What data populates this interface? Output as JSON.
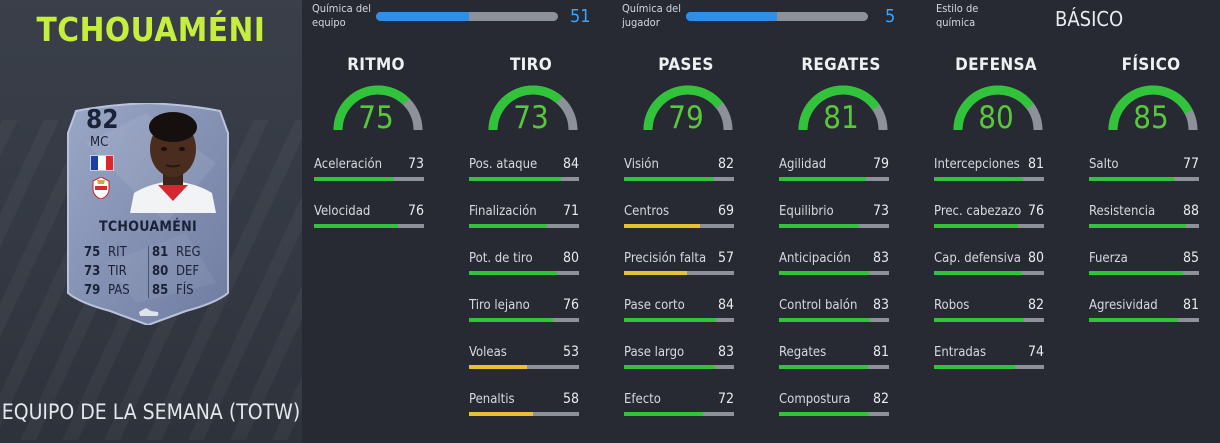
{
  "player": {
    "name_title": "TCHOUAMÉNI",
    "team_label": "EQUIPO DE LA SEMANA (TOTW)"
  },
  "card": {
    "rating": "82",
    "position": "MC",
    "name": "TCHOUAMÉNI",
    "stats": [
      {
        "l_val": "75",
        "l_lbl": "RIT",
        "r_val": "81",
        "r_lbl": "REG"
      },
      {
        "l_val": "73",
        "l_lbl": "TIR",
        "r_val": "80",
        "r_lbl": "DEF"
      },
      {
        "l_val": "79",
        "l_lbl": "PAS",
        "r_val": "85",
        "r_lbl": "FÍS"
      }
    ],
    "colors": {
      "card": "#8896b8",
      "text": "#1a2238"
    }
  },
  "chemistry": {
    "team": {
      "label_line1": "Química del",
      "label_line2": "equipo",
      "value": "51",
      "fill": 0.51
    },
    "player": {
      "label_line1": "Química del",
      "label_line2": "jugador",
      "value": "5",
      "fill": 0.5
    },
    "style": {
      "label_line1": "Estilo de",
      "label_line2": "química",
      "value": "BÁSICO"
    }
  },
  "colors": {
    "accent_green": "#31c43a",
    "accent_yellow": "#e8c130",
    "chem_blue": "#2f8fe8",
    "title_lime": "#c6ee3e"
  },
  "categories": [
    {
      "title": "RITMO",
      "value": "75",
      "stats": [
        {
          "label": "Aceleración",
          "value": "73",
          "color": "green"
        },
        {
          "label": "Velocidad",
          "value": "76",
          "color": "green"
        }
      ]
    },
    {
      "title": "TIRO",
      "value": "73",
      "stats": [
        {
          "label": "Pos. ataque",
          "value": "84",
          "color": "green"
        },
        {
          "label": "Finalización",
          "value": "71",
          "color": "green"
        },
        {
          "label": "Pot. de tiro",
          "value": "80",
          "color": "green"
        },
        {
          "label": "Tiro lejano",
          "value": "76",
          "color": "green"
        },
        {
          "label": "Voleas",
          "value": "53",
          "color": "yellow"
        },
        {
          "label": "Penaltis",
          "value": "58",
          "color": "yellow"
        }
      ]
    },
    {
      "title": "PASES",
      "value": "79",
      "stats": [
        {
          "label": "Visión",
          "value": "82",
          "color": "green"
        },
        {
          "label": "Centros",
          "value": "69",
          "color": "yellow"
        },
        {
          "label": "Precisión falta",
          "value": "57",
          "color": "yellow"
        },
        {
          "label": "Pase corto",
          "value": "84",
          "color": "green"
        },
        {
          "label": "Pase largo",
          "value": "83",
          "color": "green"
        },
        {
          "label": "Efecto",
          "value": "72",
          "color": "green"
        }
      ]
    },
    {
      "title": "REGATES",
      "value": "81",
      "stats": [
        {
          "label": "Agilidad",
          "value": "79",
          "color": "green"
        },
        {
          "label": "Equilibrio",
          "value": "73",
          "color": "green"
        },
        {
          "label": "Anticipación",
          "value": "83",
          "color": "green"
        },
        {
          "label": "Control balón",
          "value": "83",
          "color": "green"
        },
        {
          "label": "Regates",
          "value": "81",
          "color": "green"
        },
        {
          "label": "Compostura",
          "value": "82",
          "color": "green"
        }
      ]
    },
    {
      "title": "DEFENSA",
      "value": "80",
      "stats": [
        {
          "label": "Intercepciones",
          "value": "81",
          "color": "green"
        },
        {
          "label": "Prec. cabezazo",
          "value": "76",
          "color": "green"
        },
        {
          "label": "Cap. defensiva",
          "value": "80",
          "color": "green"
        },
        {
          "label": "Robos",
          "value": "82",
          "color": "green"
        },
        {
          "label": "Entradas",
          "value": "74",
          "color": "green"
        }
      ]
    },
    {
      "title": "FÍSICO",
      "value": "85",
      "stats": [
        {
          "label": "Salto",
          "value": "77",
          "color": "green"
        },
        {
          "label": "Resistencia",
          "value": "88",
          "color": "green"
        },
        {
          "label": "Fuerza",
          "value": "85",
          "color": "green"
        },
        {
          "label": "Agresividad",
          "value": "81",
          "color": "green"
        }
      ]
    }
  ]
}
